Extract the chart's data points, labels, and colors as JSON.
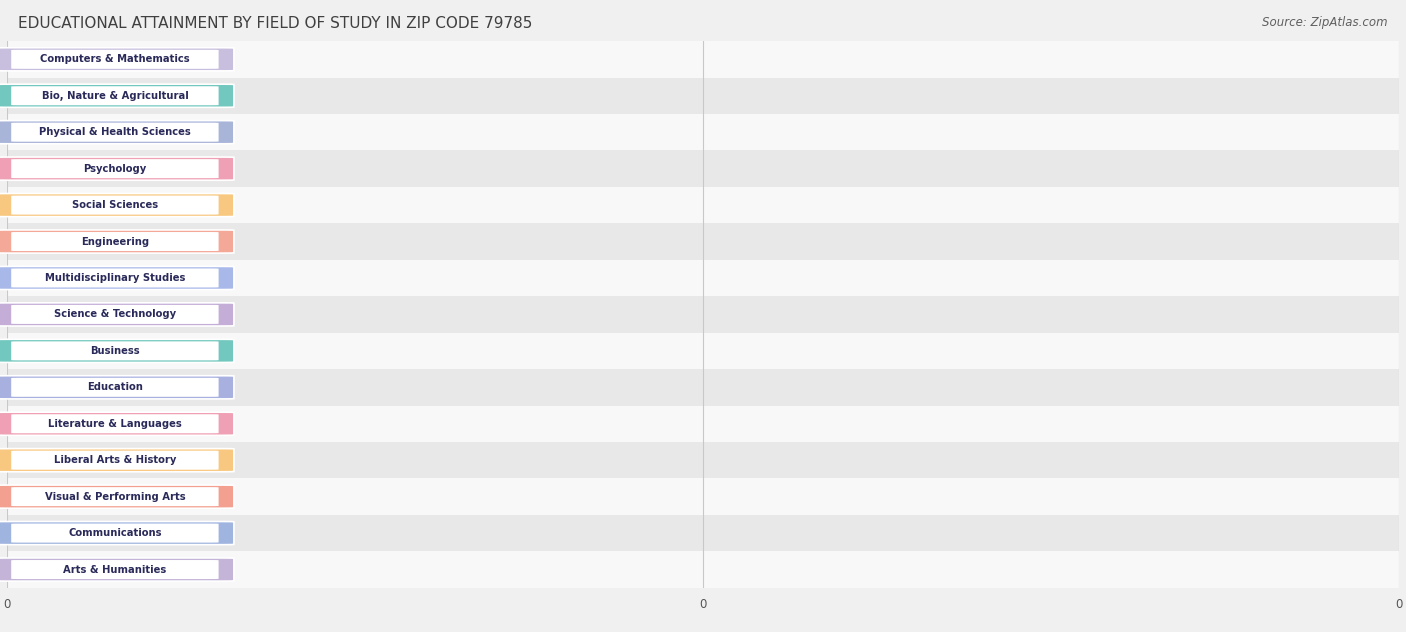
{
  "title": "EDUCATIONAL ATTAINMENT BY FIELD OF STUDY IN ZIP CODE 79785",
  "source": "Source: ZipAtlas.com",
  "categories": [
    "Computers & Mathematics",
    "Bio, Nature & Agricultural",
    "Physical & Health Sciences",
    "Psychology",
    "Social Sciences",
    "Engineering",
    "Multidisciplinary Studies",
    "Science & Technology",
    "Business",
    "Education",
    "Literature & Languages",
    "Liberal Arts & History",
    "Visual & Performing Arts",
    "Communications",
    "Arts & Humanities"
  ],
  "values": [
    0,
    0,
    0,
    0,
    0,
    0,
    0,
    0,
    0,
    0,
    0,
    0,
    0,
    0,
    0
  ],
  "bar_colors": [
    "#c8bedd",
    "#72c8be",
    "#a8b4d8",
    "#f0a0b4",
    "#f8c880",
    "#f4a898",
    "#a8b8e8",
    "#c4aed8",
    "#72c8be",
    "#a8b0e0",
    "#f0a0b4",
    "#f8c880",
    "#f4a090",
    "#a0b4e0",
    "#c4b4d8"
  ],
  "xlim_data": 1.0,
  "background_color": "#f0f0f0",
  "row_alt_color": "#e8e8e8",
  "row_main_color": "#f8f8f8",
  "title_fontsize": 11,
  "source_fontsize": 8.5,
  "title_color": "#404040",
  "source_color": "#606060"
}
